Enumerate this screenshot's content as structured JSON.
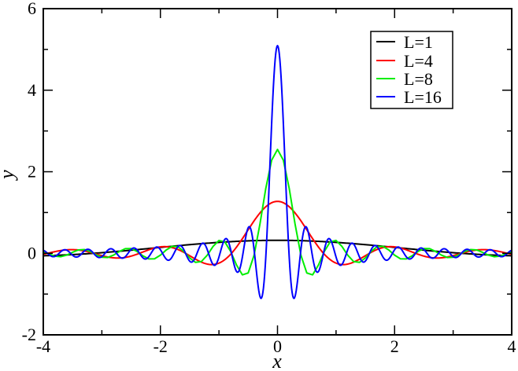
{
  "chart_data": {
    "type": "line",
    "title": "",
    "xlabel": "x",
    "ylabel": "y",
    "xlim": [
      -4,
      4
    ],
    "ylim": [
      -2,
      6
    ],
    "x_ticks_major": [
      -4,
      -2,
      0,
      2,
      4
    ],
    "x_tick_labels": [
      "-4",
      "-2",
      "0",
      "2",
      "4"
    ],
    "x_ticks_minor": [
      -3,
      -1,
      1,
      3
    ],
    "y_ticks_major": [
      -2,
      0,
      2,
      4,
      6
    ],
    "y_tick_labels": [
      "-2",
      "0",
      "2",
      "4",
      "6"
    ],
    "y_ticks_minor": [
      -1,
      1,
      3,
      5
    ],
    "grid": false,
    "legend_position": "upper right",
    "function": "y = sin(L x) / (pi x)",
    "series": [
      {
        "name": "L=1",
        "L": 1,
        "color": "#000000",
        "peak_at_x0": 0.32,
        "sample_step": 0.02
      },
      {
        "name": "L=4",
        "L": 4,
        "color": "#ff0000",
        "peak_at_x0": 1.27,
        "sample_step": 0.02
      },
      {
        "name": "L=8",
        "L": 8,
        "color": "#00ee00",
        "peak_at_x0": 2.5,
        "sample_step": 0.1
      },
      {
        "name": "L=16",
        "L": 16,
        "color": "#0000ff",
        "peak_at_x0": 5.09,
        "sample_step": 0.01
      }
    ],
    "key_points": {
      "L=16": {
        "max": [
          0,
          5.09
        ],
        "first_minima": [
          [
            -0.28,
            -1.1
          ],
          [
            0.28,
            -1.1
          ]
        ]
      },
      "L=8": {
        "max": [
          0,
          2.5
        ],
        "first_minima": [
          [
            -0.55,
            -0.55
          ],
          [
            0.55,
            -0.55
          ]
        ]
      },
      "L=4": {
        "max": [
          0,
          1.27
        ],
        "first_minima": [
          [
            -1.1,
            -0.28
          ],
          [
            1.1,
            -0.28
          ]
        ]
      },
      "L=1": {
        "max": [
          0,
          0.32
        ]
      }
    }
  },
  "legend": {
    "entries": [
      {
        "label": "L=1",
        "color": "#000000"
      },
      {
        "label": "L=4",
        "color": "#ff0000"
      },
      {
        "label": "L=8",
        "color": "#00ee00"
      },
      {
        "label": "L=16",
        "color": "#0000ff"
      }
    ]
  },
  "axes": {
    "x_label": "x",
    "y_label": "y"
  }
}
